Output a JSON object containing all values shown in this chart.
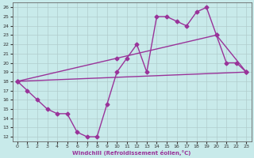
{
  "xlabel": "Windchill (Refroidissement éolien,°C)",
  "bg_color": "#c8eaea",
  "grid_color": "#b0cccc",
  "line_color": "#993399",
  "xlim": [
    -0.5,
    23.5
  ],
  "ylim": [
    11.5,
    26.5
  ],
  "xticks": [
    0,
    1,
    2,
    3,
    4,
    5,
    6,
    7,
    8,
    9,
    10,
    11,
    12,
    13,
    14,
    15,
    16,
    17,
    18,
    19,
    20,
    21,
    22,
    23
  ],
  "yticks": [
    12,
    13,
    14,
    15,
    16,
    17,
    18,
    19,
    20,
    21,
    22,
    23,
    24,
    25,
    26
  ],
  "line1_x": [
    0,
    1,
    2,
    3,
    4,
    5,
    6,
    7,
    8,
    9,
    10,
    11,
    12,
    13,
    14,
    15,
    16,
    17,
    18,
    19,
    20,
    21,
    22,
    23
  ],
  "line1_y": [
    18,
    17,
    16,
    15,
    14.5,
    14.5,
    12.5,
    12,
    12,
    15.5,
    19,
    20.5,
    22,
    19,
    25,
    25,
    24.5,
    24,
    25.5,
    26,
    23,
    20,
    20,
    19
  ],
  "line2_x": [
    0,
    23
  ],
  "line2_y": [
    18,
    19
  ],
  "line3_x": [
    0,
    10,
    20,
    23
  ],
  "line3_y": [
    18,
    20.5,
    23,
    19
  ],
  "marker": "D",
  "marker_size": 2.5,
  "line_width": 1.0
}
